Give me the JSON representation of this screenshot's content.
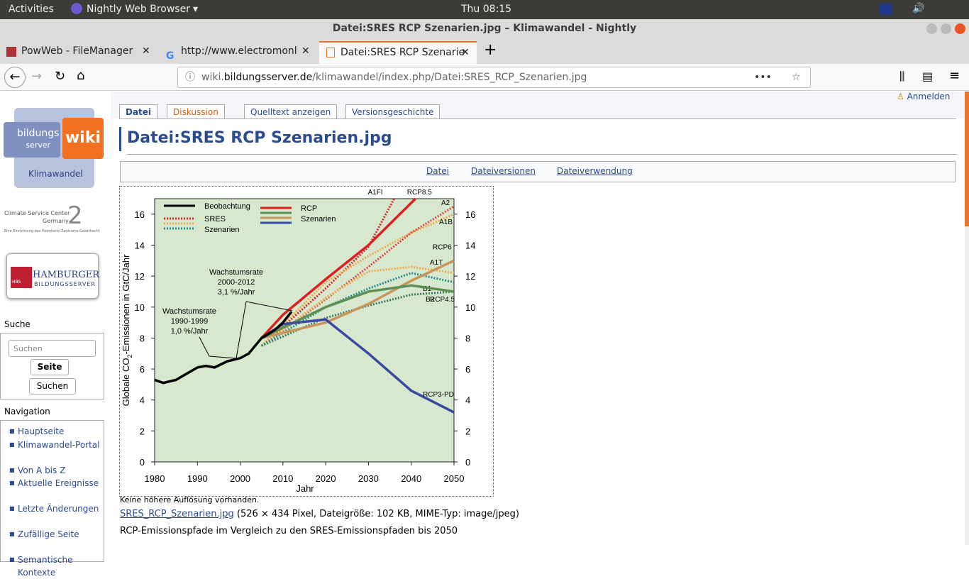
{
  "topbar": {
    "activities": "Activities",
    "app": "Nightly Web Browser",
    "clock": "Thu 08:15"
  },
  "window_title": "Datei:SRES RCP Szenarien.jpg – Klimawandel - Nightly",
  "tabs": [
    "PowWeb - FileManager",
    "http://www.electromonl",
    "Datei:SRES RCP Szenarie"
  ],
  "url": {
    "sub": "wiki.",
    "domain": "bildungsserver.de",
    "path": "/klimawandel/index.php/Datei:SRES_RCP_Szenarien.jpg"
  },
  "sidebar": {
    "logo": {
      "line1": "bildungs",
      "line2": "server",
      "wiki": "wiki",
      "sub": "Klimawandel"
    },
    "csc": {
      "name": "Climate Service Center",
      "country": "Germany",
      "note": "Eine Einrichtung des Helmholtz-Zentrums Geesthacht",
      "mark": "2"
    },
    "hbs": {
      "name": "HAMBURGER",
      "sub": "BILDUNGSSERVER",
      "abbr": "HBS"
    },
    "search": {
      "heading": "Suche",
      "placeholder": "Suchen",
      "button1": "Seite",
      "button2": "Suchen"
    },
    "navigation": {
      "heading": "Navigation",
      "items": [
        "Hauptseite",
        "Klimawandel-Portal",
        "Von A bis Z",
        "Aktuelle Ereignisse",
        "Letzte Änderungen",
        "Zufällige Seite",
        "Semantische Kontexte"
      ]
    }
  },
  "login": "Anmelden",
  "page_tabs": [
    "Datei",
    "Diskussion",
    "Quelltext anzeigen",
    "Versionsgeschichte"
  ],
  "heading": "Datei:SRES RCP Szenarien.jpg",
  "file_links": [
    "Datei",
    "Dateiversionen",
    "Dateiverwendung"
  ],
  "figure": {
    "type": "line",
    "y_label": [
      "Globale CO",
      "2",
      "-Emissionen in GtC/Jahr"
    ],
    "x_label": "Jahr",
    "xlim": [
      1980,
      2050
    ],
    "ylim": [
      0,
      17
    ],
    "xticks": [
      1980,
      1990,
      2000,
      2010,
      2020,
      2030,
      2040,
      2050
    ],
    "yticks": [
      0,
      2,
      4,
      6,
      8,
      10,
      12,
      14,
      16
    ],
    "y2ticks": [
      0,
      2,
      4,
      6,
      8,
      10,
      12,
      14,
      16
    ],
    "legend": [
      {
        "lines": [
          "Beobachtung"
        ]
      },
      {
        "lines": [
          "SRES",
          "Szenarien"
        ]
      },
      {
        "lines": [
          "RCP",
          "Szenarien"
        ]
      }
    ],
    "annotations": [
      [
        "Wachstumsrate",
        "1990-1999",
        "1,0 %/Jahr"
      ],
      [
        "Wachstumsrate",
        "2000-2012",
        "3,1 %/Jahr"
      ]
    ],
    "series": [
      {
        "name": "A1FI",
        "color": "#d42a2a",
        "style": "dotted",
        "x": [
          2005,
          2020,
          2030,
          2036
        ],
        "values": [
          7.5,
          11.2,
          13.9,
          17
        ]
      },
      {
        "name": "A2",
        "color": "#d84848",
        "style": "dotted",
        "x": [
          2005,
          2020,
          2030,
          2040,
          2050
        ],
        "values": [
          7.5,
          10.5,
          12.6,
          14.8,
          16.5
        ]
      },
      {
        "name": "A1B",
        "color": "#f0a848",
        "style": "dotted",
        "x": [
          2005,
          2020,
          2030,
          2040,
          2050
        ],
        "values": [
          7.5,
          11.6,
          13.3,
          14.8,
          16
        ]
      },
      {
        "name": "A1T",
        "color": "#f0a848",
        "style": "dotted",
        "x": [
          2005,
          2020,
          2030,
          2040,
          2050
        ],
        "values": [
          7.5,
          10.6,
          12.3,
          12.6,
          12.2
        ]
      },
      {
        "name": "B1",
        "color": "#2a8a8a",
        "style": "dotted",
        "x": [
          2005,
          2020,
          2030,
          2040,
          2050
        ],
        "values": [
          7.5,
          10,
          11.2,
          12.2,
          11.6
        ]
      },
      {
        "name": "B2",
        "color": "#3a7a5a",
        "style": "dotted",
        "x": [
          2005,
          2020,
          2030,
          2040,
          2050
        ],
        "values": [
          7.5,
          9.3,
          10.1,
          10.8,
          11
        ]
      },
      {
        "name": "RCP8.5",
        "color": "#e02020",
        "style": "solid",
        "x": [
          2005,
          2010,
          2020,
          2030,
          2041
        ],
        "values": [
          8,
          9.5,
          11.8,
          14,
          17
        ]
      },
      {
        "name": "RCP6",
        "color": "#c8955a",
        "style": "solid",
        "x": [
          2005,
          2020,
          2030,
          2040,
          2050
        ],
        "values": [
          8,
          9,
          10.2,
          11.7,
          13
        ]
      },
      {
        "name": "RCP4.5",
        "color": "#5e8f55",
        "style": "solid",
        "x": [
          2005,
          2020,
          2030,
          2040,
          2050
        ],
        "values": [
          8,
          10,
          11,
          11.4,
          11
        ]
      },
      {
        "name": "RCP3-PD",
        "color": "#3a4aa0",
        "style": "solid",
        "x": [
          2005,
          2010,
          2020,
          2030,
          2040,
          2050
        ],
        "values": [
          8,
          8.9,
          9.2,
          7,
          4.6,
          3.2
        ]
      },
      {
        "name": "Beobachtung",
        "color": "#000000",
        "style": "solid",
        "x": [
          1980,
          1982,
          1985,
          1990,
          1992,
          1994,
          1997,
          2000,
          2002,
          2005,
          2008,
          2010,
          2012
        ],
        "values": [
          5.3,
          5.1,
          5.3,
          6.1,
          6.2,
          6.1,
          6.5,
          6.7,
          7,
          8,
          8.5,
          9,
          9.7
        ]
      }
    ]
  },
  "note": "Keine höhere Auflösung vorhanden.",
  "file_link": "SRES_RCP_Szenarien.jpg",
  "file_info": "(526 × 434 Pixel, Dateigröße: 102 KB, MIME-Typ: image/jpeg)",
  "description": "RCP-Emissionspfade im Vergleich zu den SRES-Emissionspfaden bis 2050"
}
